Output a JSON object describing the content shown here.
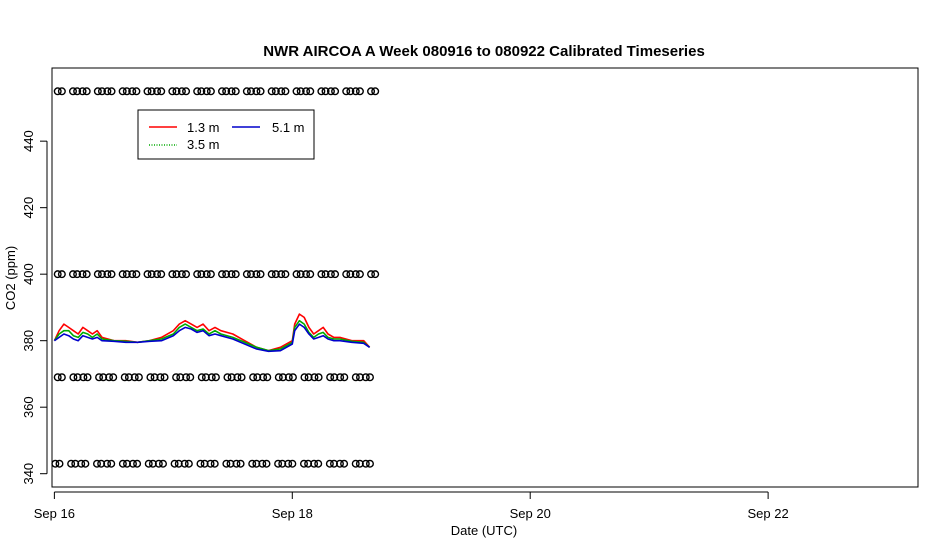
{
  "chart_data": {
    "type": "line",
    "title": "NWR AIRCOA A  Week 080916 to 080922  Calibrated Timeseries",
    "xlabel": "Date (UTC)",
    "ylabel": "CO2 (ppm)",
    "xlim_days": [
      15.98,
      23.26
    ],
    "ylim": [
      336,
      462
    ],
    "x_ticks": [
      {
        "value": 16,
        "label": "Sep 16"
      },
      {
        "value": 18,
        "label": "Sep 18"
      },
      {
        "value": 20,
        "label": "Sep 20"
      },
      {
        "value": 22,
        "label": "Sep 22"
      }
    ],
    "y_ticks": [
      340,
      360,
      380,
      400,
      420,
      440
    ],
    "grid": false,
    "legend": {
      "placement": "top-left",
      "entries": [
        {
          "label": "1.3 m",
          "color": "#ff0000"
        },
        {
          "label": "5.1 m",
          "color": "#0000cc"
        },
        {
          "label": "3.5 m",
          "color": "#00aa00"
        }
      ]
    },
    "series": [
      {
        "name": "1.3 m",
        "color": "#ff0000",
        "x": [
          16.0,
          16.04,
          16.08,
          16.12,
          16.16,
          16.2,
          16.24,
          16.28,
          16.32,
          16.36,
          16.4,
          16.5,
          16.6,
          16.7,
          16.8,
          16.9,
          17.0,
          17.05,
          17.1,
          17.15,
          17.2,
          17.25,
          17.3,
          17.35,
          17.4,
          17.5,
          17.6,
          17.7,
          17.8,
          17.9,
          18.0,
          18.02,
          18.06,
          18.1,
          18.14,
          18.18,
          18.22,
          18.26,
          18.3,
          18.35,
          18.4,
          18.5,
          18.6,
          18.65
        ],
        "y": [
          380,
          383,
          385,
          384,
          383,
          382,
          384,
          383,
          382,
          383,
          381,
          380,
          380,
          379.5,
          380,
          381,
          383,
          385,
          386,
          385,
          384,
          385,
          383,
          384,
          383,
          382,
          380,
          378,
          377,
          378,
          380,
          385,
          388,
          387,
          384,
          382,
          383,
          384,
          382,
          381,
          381,
          380,
          380,
          378
        ]
      },
      {
        "name": "3.5 m",
        "color": "#00aa00",
        "x": [
          16.0,
          16.04,
          16.08,
          16.12,
          16.16,
          16.2,
          16.24,
          16.28,
          16.32,
          16.36,
          16.4,
          16.5,
          16.6,
          16.7,
          16.8,
          16.9,
          17.0,
          17.05,
          17.1,
          17.15,
          17.2,
          17.25,
          17.3,
          17.35,
          17.4,
          17.5,
          17.6,
          17.7,
          17.8,
          17.9,
          18.0,
          18.02,
          18.06,
          18.1,
          18.14,
          18.18,
          18.22,
          18.26,
          18.3,
          18.35,
          18.4,
          18.5,
          18.6,
          18.65
        ],
        "y": [
          380,
          382,
          383,
          383,
          381.5,
          381,
          382.5,
          382,
          381,
          382,
          380.5,
          380,
          379.8,
          379.5,
          380,
          380.5,
          382,
          384,
          385,
          384,
          383,
          383.5,
          382,
          383,
          382,
          381,
          379.5,
          378,
          377,
          377.5,
          379.5,
          384,
          386,
          385,
          382.5,
          381,
          382,
          382.5,
          381,
          380.5,
          380.5,
          379.8,
          379.5,
          378
        ]
      },
      {
        "name": "5.1 m",
        "color": "#0000cc",
        "x": [
          16.0,
          16.04,
          16.08,
          16.12,
          16.16,
          16.2,
          16.24,
          16.28,
          16.32,
          16.36,
          16.4,
          16.5,
          16.6,
          16.7,
          16.8,
          16.9,
          17.0,
          17.05,
          17.1,
          17.15,
          17.2,
          17.25,
          17.3,
          17.35,
          17.4,
          17.5,
          17.6,
          17.7,
          17.8,
          17.9,
          18.0,
          18.02,
          18.06,
          18.1,
          18.14,
          18.18,
          18.22,
          18.26,
          18.3,
          18.35,
          18.4,
          18.5,
          18.6,
          18.65
        ],
        "y": [
          380,
          381,
          382,
          381.5,
          380.5,
          380,
          381.5,
          381,
          380.5,
          381,
          380,
          379.8,
          379.5,
          379.5,
          379.8,
          380,
          381.5,
          383,
          384,
          383.5,
          382.5,
          383,
          381.5,
          382,
          381.5,
          380.5,
          379,
          377.5,
          376.8,
          377,
          379,
          383,
          385,
          384,
          382,
          380.5,
          381,
          381.5,
          380.5,
          380,
          380,
          379.5,
          379.2,
          378
        ]
      }
    ],
    "calibration_markers": [
      {
        "label": "",
        "y": 455,
        "x_start": 16.04,
        "x_end": 18.65,
        "count": 26
      },
      {
        "label": "",
        "y": 400,
        "x_start": 16.04,
        "x_end": 18.65,
        "count": 26
      },
      {
        "label": "",
        "y": 369,
        "x_start": 16.04,
        "x_end": 18.63,
        "count": 25
      },
      {
        "label": "",
        "y": 343,
        "x_start": 16.02,
        "x_end": 18.63,
        "count": 25
      }
    ]
  }
}
